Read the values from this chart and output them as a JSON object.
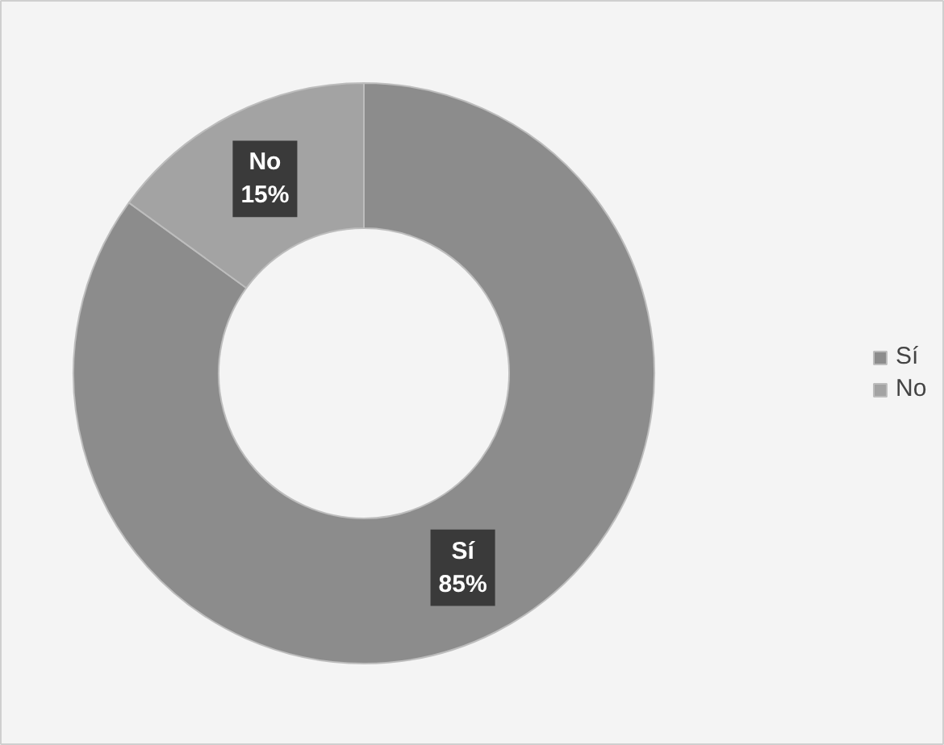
{
  "chart_data": {
    "type": "donut",
    "categories": [
      "Sí",
      "No"
    ],
    "values": [
      85,
      15
    ],
    "colors": [
      "#8c8c8c",
      "#a3a3a3"
    ],
    "value_labels": [
      "85%",
      "15%"
    ],
    "legend": "right"
  }
}
